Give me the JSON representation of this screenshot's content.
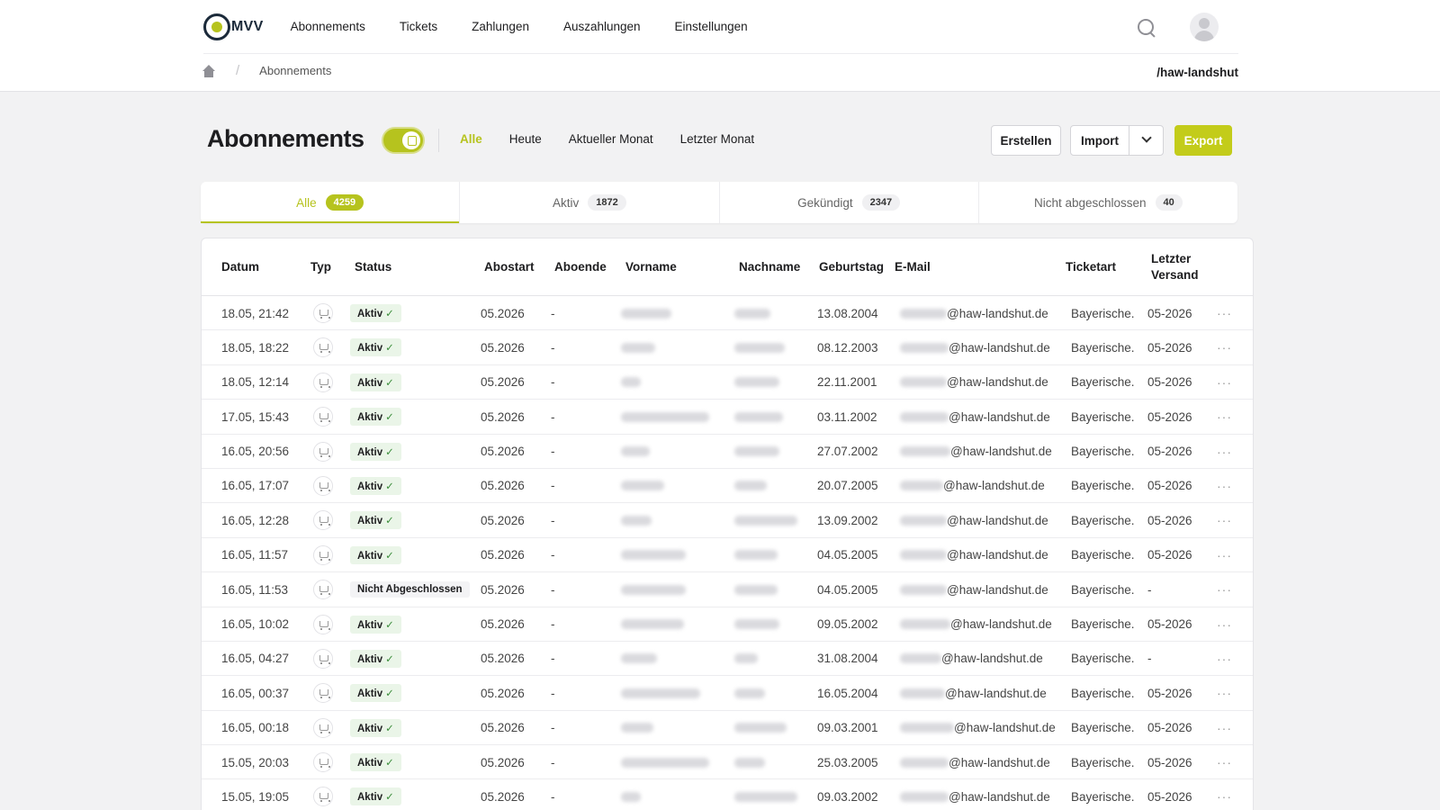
{
  "brand": {
    "logo_text": "MVV"
  },
  "nav": {
    "items": [
      "Abonnements",
      "Tickets",
      "Zahlungen",
      "Auszahlungen",
      "Einstellungen"
    ]
  },
  "breadcrumb": {
    "current": "Abonnements"
  },
  "tenant": "/haw-landshut",
  "page": {
    "title": "Abonnements",
    "toggle_on": true
  },
  "filters": [
    "Alle",
    "Heute",
    "Aktueller Monat",
    "Letzter Monat"
  ],
  "actions": {
    "create": "Erstellen",
    "import": "Import",
    "export": "Export"
  },
  "tabs": [
    {
      "label": "Alle",
      "count": "4259"
    },
    {
      "label": "Aktiv",
      "count": "1872"
    },
    {
      "label": "Gekündigt",
      "count": "2347"
    },
    {
      "label": "Nicht abgeschlossen",
      "count": "40"
    }
  ],
  "columns": [
    "Datum",
    "Typ",
    "Status",
    "Abostart",
    "Aboende",
    "Vorname",
    "Nachname",
    "Geburtstag",
    "E-Mail",
    "Ticketart",
    "Letzter Versand"
  ],
  "colors": {
    "accent": "#b6c31e",
    "status_ok_bg": "#eaf5e8"
  },
  "rows": [
    {
      "datum": "18.05, 21:42",
      "status": "Aktiv",
      "abostart": "05.2026",
      "aboende": "-",
      "geburtstag": "13.08.2004",
      "email": "@haw-landshut.de",
      "ticketart": "Bayerische.",
      "versand": "05-2026"
    },
    {
      "datum": "18.05, 18:22",
      "status": "Aktiv",
      "abostart": "05.2026",
      "aboende": "-",
      "geburtstag": "08.12.2003",
      "email": "@haw-landshut.de",
      "ticketart": "Bayerische.",
      "versand": "05-2026"
    },
    {
      "datum": "18.05, 12:14",
      "status": "Aktiv",
      "abostart": "05.2026",
      "aboende": "-",
      "geburtstag": "22.11.2001",
      "email": "@haw-landshut.de",
      "ticketart": "Bayerische.",
      "versand": "05-2026"
    },
    {
      "datum": "17.05, 15:43",
      "status": "Aktiv",
      "abostart": "05.2026",
      "aboende": "-",
      "geburtstag": "03.11.2002",
      "email": "@haw-landshut.de",
      "ticketart": "Bayerische.",
      "versand": "05-2026"
    },
    {
      "datum": "16.05, 20:56",
      "status": "Aktiv",
      "abostart": "05.2026",
      "aboende": "-",
      "geburtstag": "27.07.2002",
      "email": "@haw-landshut.de",
      "ticketart": "Bayerische.",
      "versand": "05-2026"
    },
    {
      "datum": "16.05, 17:07",
      "status": "Aktiv",
      "abostart": "05.2026",
      "aboende": "-",
      "geburtstag": "20.07.2005",
      "email": "@haw-landshut.de",
      "ticketart": "Bayerische.",
      "versand": "05-2026"
    },
    {
      "datum": "16.05, 12:28",
      "status": "Aktiv",
      "abostart": "05.2026",
      "aboende": "-",
      "geburtstag": "13.09.2002",
      "email": "@haw-landshut.de",
      "ticketart": "Bayerische.",
      "versand": "05-2026"
    },
    {
      "datum": "16.05, 11:57",
      "status": "Aktiv",
      "abostart": "05.2026",
      "aboende": "-",
      "geburtstag": "04.05.2005",
      "email": "@haw-landshut.de",
      "ticketart": "Bayerische.",
      "versand": "05-2026"
    },
    {
      "datum": "16.05, 11:53",
      "status": "Nicht Abgeschlossen",
      "abostart": "05.2026",
      "aboende": "-",
      "geburtstag": "04.05.2005",
      "email": "@haw-landshut.de",
      "ticketart": "Bayerische.",
      "versand": "-"
    },
    {
      "datum": "16.05, 10:02",
      "status": "Aktiv",
      "abostart": "05.2026",
      "aboende": "-",
      "geburtstag": "09.05.2002",
      "email": "@haw-landshut.de",
      "ticketart": "Bayerische.",
      "versand": "05-2026"
    },
    {
      "datum": "16.05, 04:27",
      "status": "Aktiv",
      "abostart": "05.2026",
      "aboende": "-",
      "geburtstag": "31.08.2004",
      "email": "@haw-landshut.de",
      "ticketart": "Bayerische.",
      "versand": "-"
    },
    {
      "datum": "16.05, 00:37",
      "status": "Aktiv",
      "abostart": "05.2026",
      "aboende": "-",
      "geburtstag": "16.05.2004",
      "email": "@haw-landshut.de",
      "ticketart": "Bayerische.",
      "versand": "05-2026"
    },
    {
      "datum": "16.05, 00:18",
      "status": "Aktiv",
      "abostart": "05.2026",
      "aboende": "-",
      "geburtstag": "09.03.2001",
      "email": "@haw-landshut.de",
      "ticketart": "Bayerische.",
      "versand": "05-2026"
    },
    {
      "datum": "15.05, 20:03",
      "status": "Aktiv",
      "abostart": "05.2026",
      "aboende": "-",
      "geburtstag": "25.03.2005",
      "email": "@haw-landshut.de",
      "ticketart": "Bayerische.",
      "versand": "05-2026"
    },
    {
      "datum": "15.05, 19:05",
      "status": "Aktiv",
      "abostart": "05.2026",
      "aboende": "-",
      "geburtstag": "09.03.2002",
      "email": "@haw-landshut.de",
      "ticketart": "Bayerische.",
      "versand": "05-2026"
    }
  ]
}
